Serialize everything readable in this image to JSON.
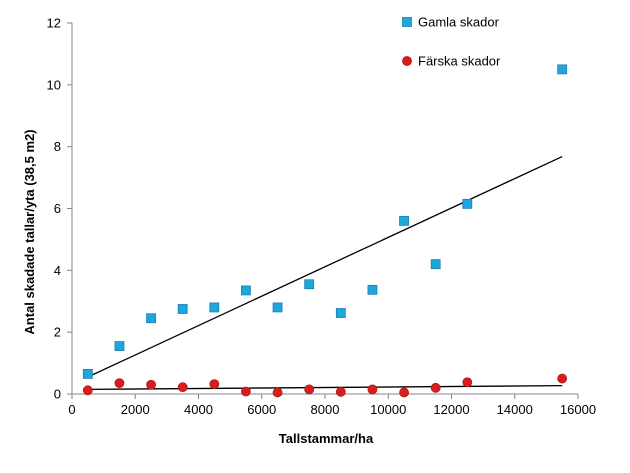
{
  "chart_data": {
    "type": "scatter",
    "xlabel": "Tallstammar/ha",
    "ylabel": "Antal skadade tallar/yta (38,5 m2)",
    "xlim": [
      0,
      16000
    ],
    "ylim": [
      0,
      12
    ],
    "xticks": [
      0,
      2000,
      4000,
      6000,
      8000,
      10000,
      12000,
      14000,
      16000
    ],
    "yticks": [
      0,
      2,
      4,
      6,
      8,
      10,
      12
    ],
    "grid": false,
    "legend_position": "top-right",
    "series": [
      {
        "name": "Gamla skador",
        "marker": "square",
        "color": "#1ea6dd",
        "x": [
          500,
          1500,
          2500,
          3500,
          4500,
          5500,
          6500,
          7500,
          8500,
          9500,
          10500,
          11500,
          12500,
          15500
        ],
        "y": [
          0.65,
          1.55,
          2.45,
          2.75,
          2.8,
          3.35,
          2.8,
          3.55,
          2.62,
          3.37,
          5.6,
          4.2,
          6.15,
          10.5
        ],
        "trendline": {
          "x": [
            500,
            15500
          ],
          "y": [
            0.55,
            7.68
          ]
        }
      },
      {
        "name": "Färska skador",
        "marker": "circle",
        "color": "#d61e1e",
        "x": [
          500,
          1500,
          2500,
          3500,
          4500,
          5500,
          6500,
          7500,
          8500,
          9500,
          10500,
          11500,
          12500,
          15500
        ],
        "y": [
          0.12,
          0.35,
          0.3,
          0.22,
          0.32,
          0.08,
          0.05,
          0.15,
          0.07,
          0.15,
          0.05,
          0.2,
          0.38,
          0.5
        ],
        "trendline": {
          "x": [
            500,
            15500
          ],
          "y": [
            0.15,
            0.27
          ]
        }
      }
    ]
  }
}
